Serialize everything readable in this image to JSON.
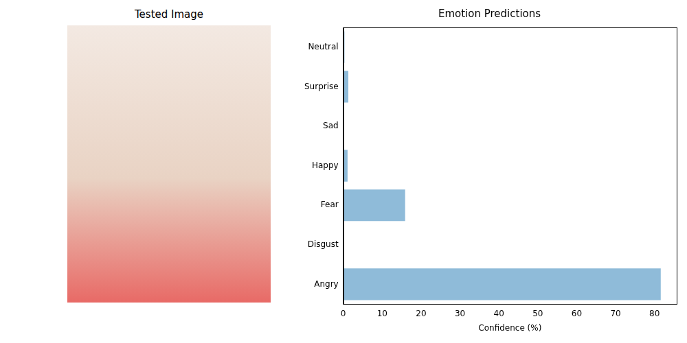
{
  "image_title": "Tested Image",
  "chart_data": {
    "type": "bar",
    "orientation": "horizontal",
    "title": "Emotion Predictions",
    "x_label": "Confidence (%)",
    "categories": [
      "Angry",
      "Disgust",
      "Fear",
      "Happy",
      "Sad",
      "Surprise",
      "Neutral"
    ],
    "values": [
      81.6,
      0.05,
      15.9,
      1.1,
      0.05,
      1.3,
      0.3
    ],
    "color": "#8fbbd9",
    "xlim": [
      0,
      85.7
    ],
    "xticks": [
      0,
      10,
      20,
      30,
      40,
      50,
      60,
      70,
      80
    ],
    "grid": false
  }
}
